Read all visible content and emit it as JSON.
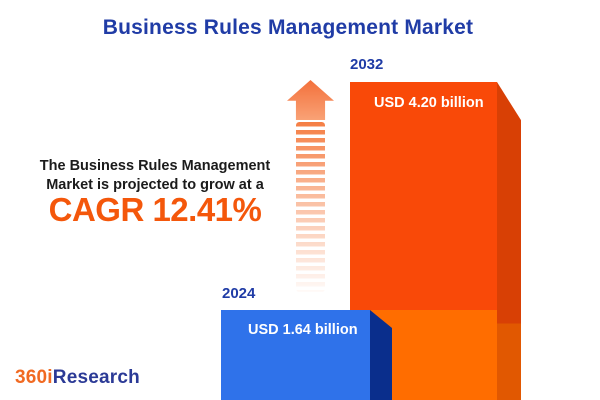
{
  "header": {
    "title": "Business Rules Management Market"
  },
  "growth_note": {
    "line1": "The Business Rules Management",
    "line2": "Market is projected to grow at a",
    "cagr_label": "CAGR 12.41%"
  },
  "chart_data": {
    "type": "bar",
    "title": "Business Rules Management Market",
    "unit": "USD billion",
    "categories": [
      "2024",
      "2032"
    ],
    "values": [
      1.64,
      4.2
    ],
    "value_labels": [
      "USD 1.64 billion",
      "USD 4.20 billion"
    ],
    "cagr_percent": 12.41,
    "annotation": "The Business Rules Management Market is projected to grow at a CAGR 12.41%",
    "orientation": "vertical",
    "legend": "none",
    "grid": "off"
  },
  "bars": [
    {
      "year": "2024",
      "value_label": "USD 1.64 billion",
      "front_color": "#2F72EA",
      "side_color": "#0A2E8C"
    },
    {
      "year": "2032",
      "value_label": "USD 4.20 billion",
      "front_color_top": "#F94908",
      "front_color_bottom": "#FF6D00",
      "side_color_top": "#D84005",
      "side_color_bottom": "#E15801"
    }
  ],
  "logo": {
    "prefix": "360i",
    "suffix": "Research",
    "prefix_color": "#F16A22",
    "suffix_color": "#2B3A96"
  },
  "colors": {
    "title_blue": "#203CA6",
    "cagr_orange": "#F4570B",
    "text_dark": "#1B1B1B",
    "arrow_orange": "#F57E44",
    "background": "#FFFFFF"
  }
}
